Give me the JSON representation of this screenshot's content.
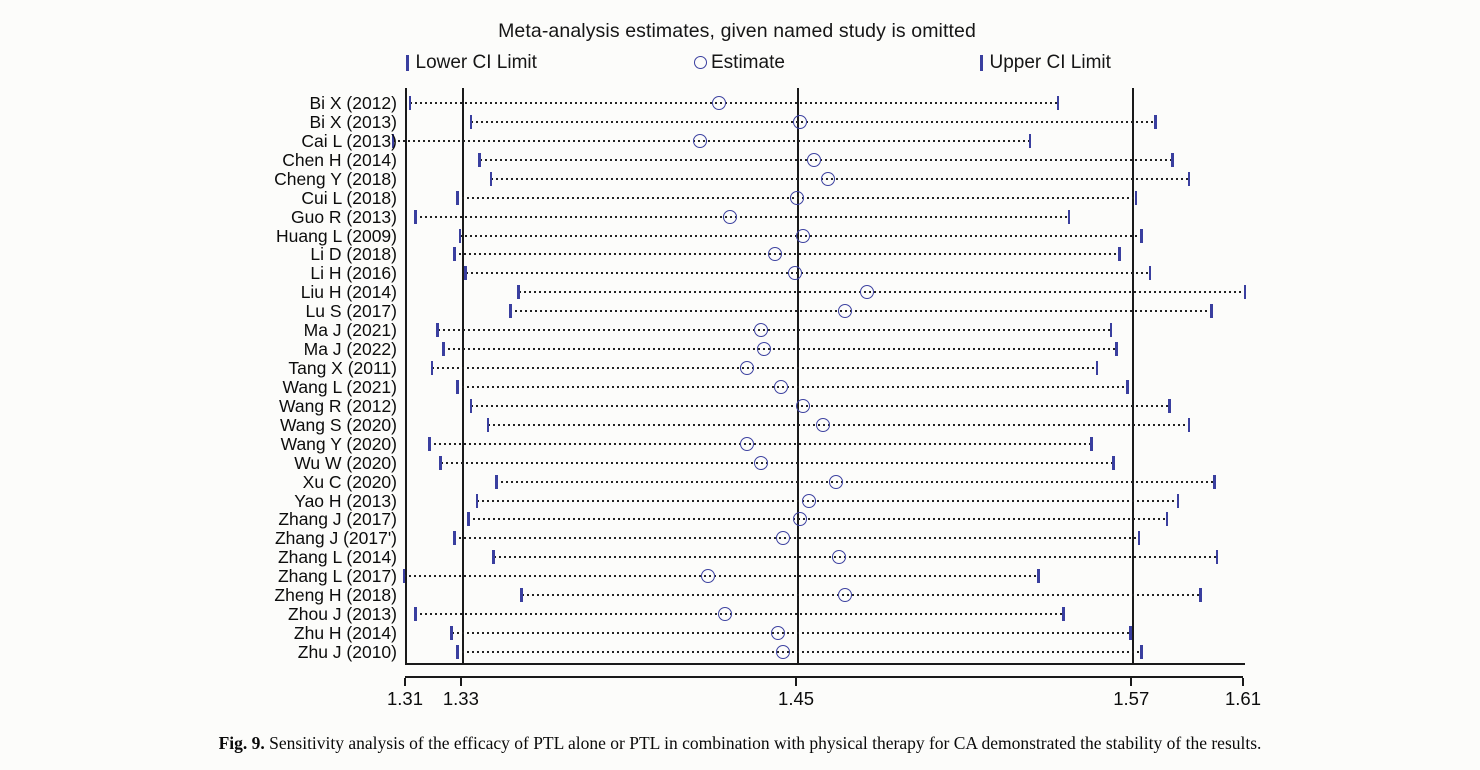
{
  "title": "Meta-analysis estimates, given named study is omitted",
  "legend": {
    "lower_label": "Lower CI Limit",
    "estimate_label": "Estimate",
    "upper_label": "Upper CI Limit"
  },
  "caption": {
    "prefix": "Fig. 9.",
    "text": " Sensitivity analysis of the efficacy of PTL alone or PTL in combination with physical therapy for CA demonstrated the stability of the results."
  },
  "colors": {
    "marker": "#3a3f9f",
    "dotted_line": "#222222",
    "axis": "#1a1a1a",
    "background": "#fcfcfa"
  },
  "chart_data": {
    "type": "scatter",
    "title": "Meta-analysis estimates, given named study is omitted",
    "xlabel": "",
    "ylabel": "",
    "x_range": [
      1.31,
      1.61
    ],
    "x_ticks": [
      1.31,
      1.33,
      1.45,
      1.57,
      1.61
    ],
    "reference_lines": [
      1.33,
      1.45,
      1.57
    ],
    "grid": false,
    "legend_position": "top",
    "categories": [
      "Bi X (2012)",
      "Bi X (2013)",
      "Cai L (2013)",
      "Chen H (2014)",
      "Cheng Y (2018)",
      "Cui L (2018)",
      "Guo R (2013)",
      "Huang L (2009)",
      "Li D (2018)",
      "Li H (2016)",
      "Liu H (2014)",
      "Lu S (2017)",
      "Ma J (2021)",
      "Ma J (2022)",
      "Tang X (2011)",
      "Wang L (2021)",
      "Wang R (2012)",
      "Wang S (2020)",
      "Wang Y (2020)",
      "Wu W (2020)",
      "Xu C (2020)",
      "Yao H (2013)",
      "Zhang J (2017)",
      "Zhang J (2017')",
      "Zhang L (2014)",
      "Zhang L (2017)",
      "Zheng H (2018)",
      "Zhou J (2013)",
      "Zhu H (2014)",
      "Zhu J (2010)"
    ],
    "series": [
      {
        "name": "Lower CI Limit",
        "values": [
          1.311,
          1.333,
          1.305,
          1.336,
          1.34,
          1.328,
          1.313,
          1.329,
          1.327,
          1.331,
          1.35,
          1.347,
          1.321,
          1.323,
          1.319,
          1.328,
          1.333,
          1.339,
          1.318,
          1.322,
          1.342,
          1.335,
          1.332,
          1.327,
          1.341,
          1.309,
          1.351,
          1.313,
          1.326,
          1.328
        ]
      },
      {
        "name": "Estimate",
        "values": [
          1.422,
          1.451,
          1.415,
          1.456,
          1.461,
          1.45,
          1.426,
          1.452,
          1.442,
          1.449,
          1.475,
          1.467,
          1.437,
          1.438,
          1.432,
          1.444,
          1.452,
          1.459,
          1.432,
          1.437,
          1.464,
          1.454,
          1.451,
          1.445,
          1.465,
          1.418,
          1.467,
          1.424,
          1.443,
          1.445
        ]
      },
      {
        "name": "Upper CI Limit",
        "values": [
          1.543,
          1.578,
          1.533,
          1.584,
          1.59,
          1.571,
          1.547,
          1.573,
          1.565,
          1.576,
          1.61,
          1.598,
          1.562,
          1.564,
          1.557,
          1.568,
          1.583,
          1.59,
          1.555,
          1.563,
          1.599,
          1.586,
          1.582,
          1.572,
          1.6,
          1.536,
          1.594,
          1.545,
          1.569,
          1.573
        ]
      }
    ]
  }
}
